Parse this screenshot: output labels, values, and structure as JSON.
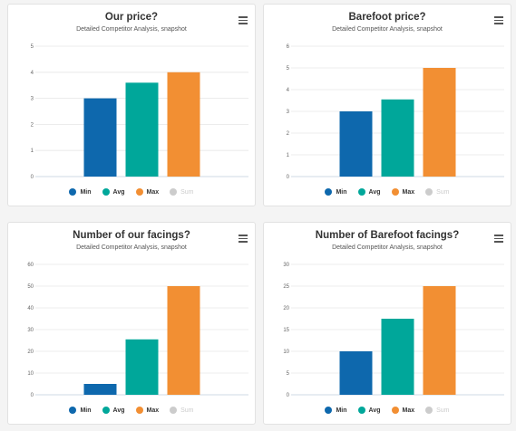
{
  "colors": {
    "min": "#0e68ad",
    "avg": "#00a79a",
    "max": "#f28f33",
    "sum": "#cccccc"
  },
  "legend": [
    {
      "label": "Min",
      "color": "#0e68ad",
      "off": false
    },
    {
      "label": "Avg",
      "color": "#00a79a",
      "off": false
    },
    {
      "label": "Max",
      "color": "#f28f33",
      "off": false
    },
    {
      "label": "Sum",
      "color": "#cccccc",
      "off": true
    }
  ],
  "chart_data": [
    {
      "type": "bar",
      "title": "Our price?",
      "subtitle": "Detailed Competitor Analysis, snapshot",
      "categories": [
        "Min",
        "Avg",
        "Max"
      ],
      "values": [
        3,
        3.6,
        4
      ],
      "yticks": [
        "0",
        "1",
        "2",
        "3",
        "4",
        "5"
      ],
      "ylim": [
        0,
        5
      ],
      "grid": true
    },
    {
      "type": "bar",
      "title": "Barefoot price?",
      "subtitle": "Detailed Competitor Analysis, snapshot",
      "categories": [
        "Min",
        "Avg",
        "Max"
      ],
      "values": [
        3,
        3.55,
        5
      ],
      "yticks": [
        "0",
        "1",
        "2",
        "3",
        "4",
        "5",
        "6"
      ],
      "ylim": [
        0,
        6
      ],
      "grid": true
    },
    {
      "type": "bar",
      "title": "Number of our facings?",
      "subtitle": "Detailed Competitor Analysis, snapshot",
      "categories": [
        "Min",
        "Avg",
        "Max"
      ],
      "values": [
        5,
        25.5,
        50
      ],
      "yticks": [
        "0",
        "10",
        "20",
        "30",
        "40",
        "50",
        "60"
      ],
      "ylim": [
        0,
        60
      ],
      "grid": true
    },
    {
      "type": "bar",
      "title": "Number of Barefoot facings?",
      "subtitle": "Detailed Competitor Analysis, snapshot",
      "categories": [
        "Min",
        "Avg",
        "Max"
      ],
      "values": [
        10,
        17.5,
        25
      ],
      "yticks": [
        "0",
        "5",
        "10",
        "15",
        "20",
        "25",
        "30"
      ],
      "ylim": [
        0,
        30
      ],
      "grid": true
    }
  ]
}
